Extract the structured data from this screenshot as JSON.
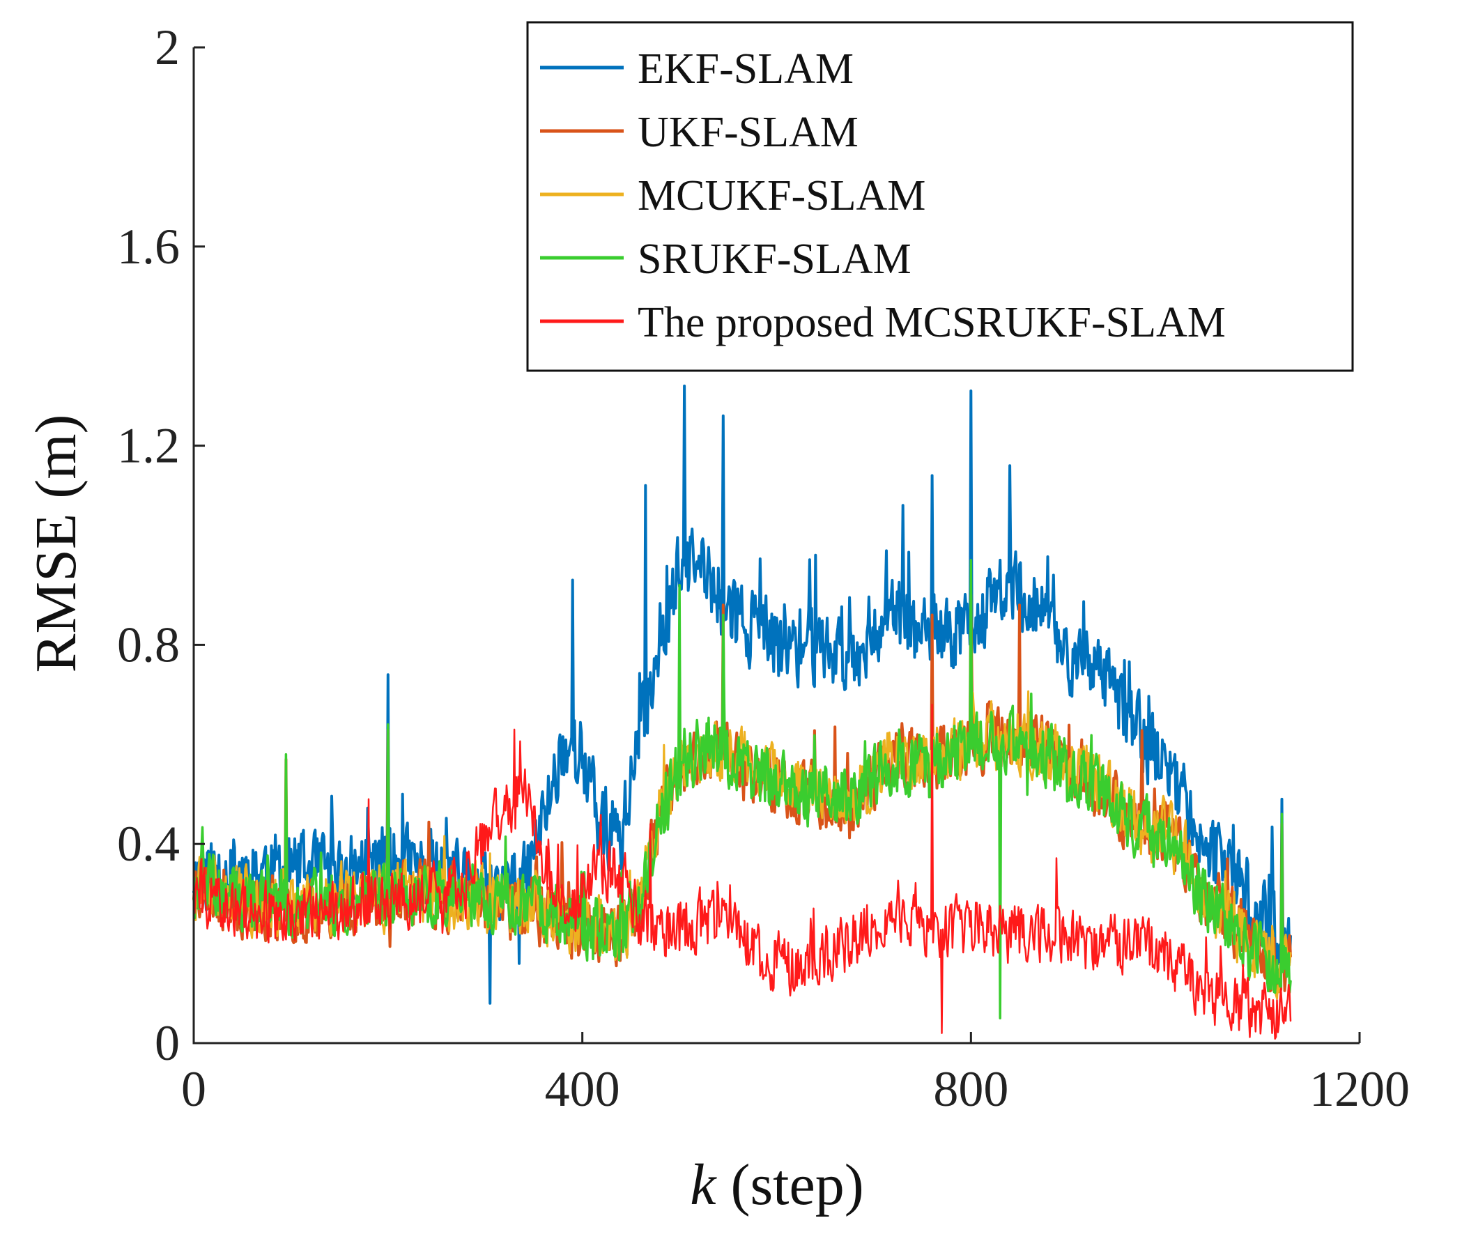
{
  "chart_data": {
    "type": "line",
    "title": "",
    "xlabel_var": "k",
    "xlabel_unit": " (step)",
    "ylabel": "RMSE (m)",
    "xlim": [
      0,
      1200
    ],
    "ylim": [
      0,
      2
    ],
    "xticks": [
      0,
      400,
      800,
      1200
    ],
    "xtick_labels": [
      "0",
      "400",
      "800",
      "1200"
    ],
    "yticks": [
      0,
      0.4,
      0.8,
      1.2,
      1.6,
      2
    ],
    "ytick_labels": [
      "0",
      "0.4",
      "0.8",
      "1.2",
      "1.6",
      "2"
    ],
    "grid": false,
    "legend_position": "top-right",
    "n_steps": 1130,
    "series": [
      {
        "name": "EKF-SLAM",
        "color": "#0072BD",
        "noise": 0.07,
        "seed": 11,
        "envelope": [
          [
            0,
            0.34
          ],
          [
            50,
            0.35
          ],
          [
            100,
            0.35
          ],
          [
            150,
            0.34
          ],
          [
            200,
            0.37
          ],
          [
            250,
            0.34
          ],
          [
            300,
            0.3
          ],
          [
            340,
            0.32
          ],
          [
            360,
            0.45
          ],
          [
            380,
            0.6
          ],
          [
            400,
            0.58
          ],
          [
            420,
            0.42
          ],
          [
            440,
            0.42
          ],
          [
            460,
            0.62
          ],
          [
            480,
            0.82
          ],
          [
            500,
            0.95
          ],
          [
            520,
            0.96
          ],
          [
            540,
            0.9
          ],
          [
            560,
            0.86
          ],
          [
            600,
            0.8
          ],
          [
            640,
            0.8
          ],
          [
            680,
            0.78
          ],
          [
            700,
            0.84
          ],
          [
            720,
            0.86
          ],
          [
            760,
            0.8
          ],
          [
            800,
            0.84
          ],
          [
            840,
            0.92
          ],
          [
            870,
            0.88
          ],
          [
            900,
            0.78
          ],
          [
            940,
            0.72
          ],
          [
            970,
            0.64
          ],
          [
            1000,
            0.55
          ],
          [
            1020,
            0.5
          ],
          [
            1040,
            0.4
          ],
          [
            1070,
            0.33
          ],
          [
            1090,
            0.28
          ],
          [
            1110,
            0.22
          ],
          [
            1129,
            0.2
          ]
        ],
        "spikes": [
          [
            200,
            0.74
          ],
          [
            215,
            0.5
          ],
          [
            305,
            0.08
          ],
          [
            335,
            0.16
          ],
          [
            390,
            0.93
          ],
          [
            465,
            1.12
          ],
          [
            505,
            1.32
          ],
          [
            545,
            1.26
          ],
          [
            640,
            0.98
          ],
          [
            730,
            1.08
          ],
          [
            760,
            1.14
          ],
          [
            800,
            1.31
          ],
          [
            840,
            1.16
          ],
          [
            885,
            0.94
          ],
          [
            1120,
            0.49
          ]
        ]
      },
      {
        "name": "UKF-SLAM",
        "color": "#D95319",
        "noise": 0.06,
        "seed": 23,
        "envelope": [
          [
            0,
            0.32
          ],
          [
            50,
            0.28
          ],
          [
            100,
            0.27
          ],
          [
            150,
            0.28
          ],
          [
            200,
            0.29
          ],
          [
            250,
            0.3
          ],
          [
            300,
            0.28
          ],
          [
            350,
            0.27
          ],
          [
            400,
            0.23
          ],
          [
            440,
            0.22
          ],
          [
            460,
            0.28
          ],
          [
            480,
            0.45
          ],
          [
            500,
            0.55
          ],
          [
            530,
            0.6
          ],
          [
            560,
            0.56
          ],
          [
            600,
            0.52
          ],
          [
            640,
            0.5
          ],
          [
            680,
            0.48
          ],
          [
            720,
            0.58
          ],
          [
            760,
            0.56
          ],
          [
            800,
            0.6
          ],
          [
            840,
            0.62
          ],
          [
            880,
            0.58
          ],
          [
            920,
            0.54
          ],
          [
            960,
            0.46
          ],
          [
            1000,
            0.42
          ],
          [
            1020,
            0.38
          ],
          [
            1040,
            0.3
          ],
          [
            1070,
            0.24
          ],
          [
            1090,
            0.2
          ],
          [
            1110,
            0.16
          ],
          [
            1129,
            0.15
          ]
        ],
        "spikes": [
          [
            95,
            0.57
          ],
          [
            200,
            0.63
          ],
          [
            545,
            0.88
          ],
          [
            760,
            0.86
          ],
          [
            800,
            0.9
          ],
          [
            850,
            0.88
          ],
          [
            1120,
            0.44
          ]
        ]
      },
      {
        "name": "MCUKF-SLAM",
        "color": "#EDB120",
        "noise": 0.06,
        "seed": 31,
        "envelope": [
          [
            0,
            0.32
          ],
          [
            50,
            0.29
          ],
          [
            100,
            0.28
          ],
          [
            150,
            0.29
          ],
          [
            200,
            0.3
          ],
          [
            250,
            0.3
          ],
          [
            300,
            0.29
          ],
          [
            350,
            0.28
          ],
          [
            400,
            0.24
          ],
          [
            440,
            0.23
          ],
          [
            460,
            0.29
          ],
          [
            480,
            0.46
          ],
          [
            500,
            0.56
          ],
          [
            530,
            0.6
          ],
          [
            560,
            0.57
          ],
          [
            600,
            0.53
          ],
          [
            640,
            0.51
          ],
          [
            680,
            0.49
          ],
          [
            720,
            0.58
          ],
          [
            760,
            0.57
          ],
          [
            800,
            0.6
          ],
          [
            840,
            0.62
          ],
          [
            880,
            0.58
          ],
          [
            920,
            0.54
          ],
          [
            960,
            0.46
          ],
          [
            1000,
            0.42
          ],
          [
            1020,
            0.38
          ],
          [
            1040,
            0.3
          ],
          [
            1070,
            0.24
          ],
          [
            1090,
            0.2
          ],
          [
            1110,
            0.16
          ],
          [
            1129,
            0.15
          ]
        ],
        "spikes": [
          [
            545,
            0.86
          ],
          [
            800,
            0.88
          ]
        ]
      },
      {
        "name": "SRUKF-SLAM",
        "color": "#3ACD2F",
        "noise": 0.06,
        "seed": 47,
        "envelope": [
          [
            0,
            0.32
          ],
          [
            50,
            0.29
          ],
          [
            100,
            0.28
          ],
          [
            150,
            0.29
          ],
          [
            200,
            0.3
          ],
          [
            250,
            0.3
          ],
          [
            300,
            0.29
          ],
          [
            350,
            0.28
          ],
          [
            400,
            0.24
          ],
          [
            440,
            0.23
          ],
          [
            460,
            0.29
          ],
          [
            480,
            0.46
          ],
          [
            500,
            0.55
          ],
          [
            530,
            0.6
          ],
          [
            560,
            0.56
          ],
          [
            600,
            0.52
          ],
          [
            640,
            0.5
          ],
          [
            680,
            0.48
          ],
          [
            720,
            0.57
          ],
          [
            760,
            0.56
          ],
          [
            800,
            0.59
          ],
          [
            840,
            0.61
          ],
          [
            880,
            0.57
          ],
          [
            920,
            0.53
          ],
          [
            960,
            0.45
          ],
          [
            1000,
            0.41
          ],
          [
            1020,
            0.37
          ],
          [
            1040,
            0.29
          ],
          [
            1070,
            0.23
          ],
          [
            1090,
            0.19
          ],
          [
            1110,
            0.15
          ],
          [
            1129,
            0.14
          ]
        ],
        "spikes": [
          [
            95,
            0.58
          ],
          [
            200,
            0.64
          ],
          [
            500,
            0.92
          ],
          [
            545,
            0.86
          ],
          [
            800,
            0.97
          ],
          [
            830,
            0.05
          ],
          [
            1120,
            0.46
          ]
        ]
      },
      {
        "name": "The proposed MCSRUKF-SLAM",
        "color": "#FF1A1A",
        "noise": 0.055,
        "seed": 59,
        "envelope": [
          [
            0,
            0.3
          ],
          [
            50,
            0.27
          ],
          [
            100,
            0.26
          ],
          [
            150,
            0.27
          ],
          [
            200,
            0.29
          ],
          [
            250,
            0.3
          ],
          [
            280,
            0.34
          ],
          [
            300,
            0.42
          ],
          [
            320,
            0.48
          ],
          [
            340,
            0.5
          ],
          [
            360,
            0.36
          ],
          [
            380,
            0.28
          ],
          [
            400,
            0.3
          ],
          [
            420,
            0.35
          ],
          [
            440,
            0.34
          ],
          [
            460,
            0.25
          ],
          [
            480,
            0.22
          ],
          [
            500,
            0.24
          ],
          [
            540,
            0.25
          ],
          [
            580,
            0.18
          ],
          [
            620,
            0.15
          ],
          [
            660,
            0.18
          ],
          [
            700,
            0.25
          ],
          [
            740,
            0.26
          ],
          [
            760,
            0.22
          ],
          [
            800,
            0.24
          ],
          [
            840,
            0.22
          ],
          [
            880,
            0.22
          ],
          [
            920,
            0.2
          ],
          [
            960,
            0.2
          ],
          [
            1000,
            0.18
          ],
          [
            1020,
            0.14
          ],
          [
            1040,
            0.1
          ],
          [
            1070,
            0.08
          ],
          [
            1100,
            0.06
          ],
          [
            1129,
            0.07
          ]
        ],
        "spikes": [
          [
            180,
            0.49
          ],
          [
            330,
            0.63
          ],
          [
            470,
            0.44
          ],
          [
            760,
            0.68
          ],
          [
            770,
            0.02
          ],
          [
            1110,
            0.02
          ]
        ]
      }
    ]
  }
}
